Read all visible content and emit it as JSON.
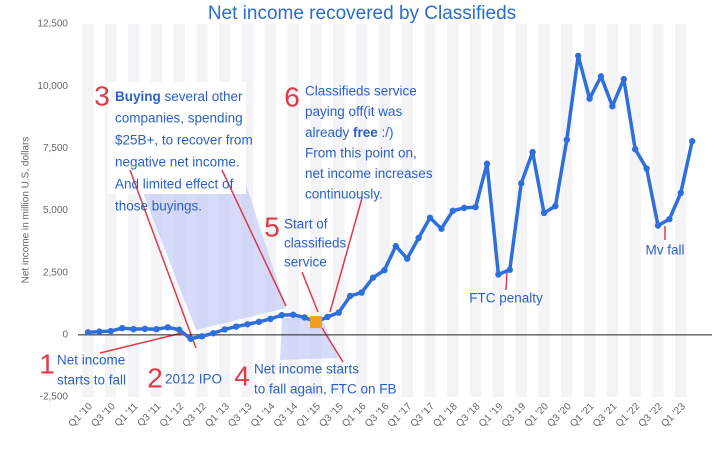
{
  "chart_data": {
    "type": "line",
    "title": "Net income recovered by Classifieds",
    "y_axis_label": "Net income in million U.S. dollars",
    "categories": [
      "Q1 '10",
      null,
      "Q3 '10",
      null,
      "Q1 '11",
      null,
      "Q3 '11",
      null,
      "Q1 '12",
      null,
      "Q3 '12",
      null,
      "Q1 '13",
      null,
      "Q3 '13",
      null,
      "Q1 '14",
      null,
      "Q3 '14",
      null,
      "Q1 '15",
      null,
      "Q3 '15",
      null,
      "Q1 '16",
      null,
      "Q3 '16",
      null,
      "Q1 '17",
      null,
      "Q3 '17",
      null,
      "Q1 '18",
      null,
      "Q3 '18",
      null,
      "Q1 '19",
      null,
      "Q3 '19",
      null,
      "Q1 '20",
      null,
      "Q3 '20",
      null,
      "Q1 '21",
      null,
      "Q3 '21",
      null,
      "Q1 '22",
      null,
      "Q3 '22",
      null,
      "Q1 '23",
      null
    ],
    "series": [
      {
        "name": "Net income",
        "color": "#2f6fdc",
        "values": [
          100,
          130,
          150,
          270,
          230,
          240,
          227,
          302,
          205,
          -157,
          -59,
          64,
          219,
          333,
          425,
          523,
          642,
          791,
          806,
          701,
          512,
          719,
          896,
          1562,
          1700,
          2300,
          2600,
          3568,
          3064,
          3894,
          4707,
          4268,
          4988,
          5106,
          5137,
          6882,
          2429,
          2616,
          6091,
          7349,
          4902,
          5178,
          7846,
          11219,
          9497,
          10394,
          9194,
          10285,
          7465,
          6687,
          4395,
          4652,
          5709,
          7788
        ]
      }
    ],
    "highlight_index": 20,
    "highlight_color": "#f0a020",
    "ylim": [
      -2500,
      12500
    ],
    "yticks": [
      {
        "value": -2500,
        "label": "-2,500"
      },
      0,
      {
        "value": 2500,
        "label": "2,500"
      },
      {
        "value": 5000,
        "label": "5,000"
      },
      {
        "value": 7500,
        "label": "7,500"
      },
      {
        "value": 10000,
        "label": "10,000"
      },
      {
        "value": 12500,
        "label": "12,500"
      }
    ],
    "annotations": [
      {
        "number": "1",
        "lines": [
          "Net income",
          "starts to fall"
        ]
      },
      {
        "number": "2",
        "lines": [
          "2012 IPO"
        ]
      },
      {
        "number": "3",
        "lines": [
          [
            {
              "text": "Buying",
              "bold": true
            },
            {
              "text": " several other"
            }
          ],
          "companies, spending",
          "$25B+, to recover from",
          "negative net income.",
          "And limited effect of",
          "those buyings."
        ]
      },
      {
        "number": "4",
        "lines": [
          "Net income starts",
          "to fall again, FTC on FB"
        ]
      },
      {
        "number": "5",
        "lines": [
          "Start of",
          "classifieds",
          "service"
        ]
      },
      {
        "number": "6",
        "lines": [
          "Classifieds service",
          "paying off(it was",
          [
            {
              "text": "already "
            },
            {
              "text": "free",
              "bold": true
            },
            {
              "text": " :/)"
            }
          ],
          "From this point on,",
          "net income increases",
          "continuously."
        ]
      },
      {
        "lines": [
          "FTC penalty"
        ]
      },
      {
        "lines": [
          "Mv fall"
        ]
      }
    ]
  }
}
